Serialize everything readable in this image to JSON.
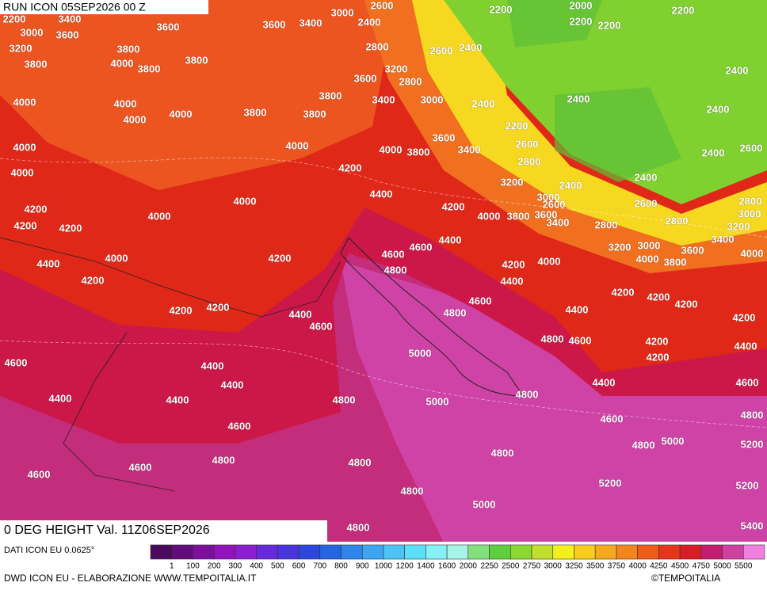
{
  "header": {
    "title": "RUN ICON 05SEP2026 00 Z"
  },
  "footer": {
    "field": "0 DEG HEIGHT Val. 11Z06SEP2026",
    "source": "DATI ICON EU 0.0625°",
    "credit": "DWD ICON EU - ELABORAZIONE WWW.TEMPOITALIA.IT",
    "brand": "©TEMPOITALIA"
  },
  "map_labels": [
    2200,
    3400,
    3000,
    3600,
    3200,
    3800,
    3600,
    3600,
    3400,
    3000,
    2400,
    2600,
    2200,
    2000,
    2200,
    2200,
    2200,
    3800,
    4000,
    3800,
    3800,
    2800,
    2600,
    2400,
    3200,
    2800,
    3600,
    3400,
    3000,
    2400,
    3800,
    4000,
    4000,
    4000,
    4000,
    3800,
    3800,
    2400,
    2400,
    2400,
    2200,
    4000,
    4000,
    4000,
    4000,
    3800,
    3600,
    3400,
    2600,
    2800,
    2400,
    2600,
    4200,
    3200,
    3000,
    2400,
    2400,
    4200,
    4200,
    4200,
    4000,
    4000,
    4400,
    4200,
    4000,
    3800,
    3600,
    2600,
    2600,
    2800,
    2800,
    3000,
    3200,
    3400,
    2800,
    3400,
    3200,
    3000,
    4000,
    3800,
    3600,
    4000,
    4400,
    4600,
    4600,
    4800,
    4200,
    4000,
    4000,
    4200,
    4400,
    4200,
    4400,
    4200,
    4200,
    4200,
    4600,
    4200,
    4200,
    4400,
    4600,
    4800,
    4400,
    4200,
    4800,
    4600,
    4200,
    4400,
    4200,
    4600,
    5000,
    4400,
    4400,
    4400,
    4600,
    4400,
    4400,
    4800,
    5000,
    4800,
    4800,
    4600,
    4600,
    5000,
    4800,
    5200,
    4800,
    4600,
    4800,
    4800,
    4600,
    5200,
    5200,
    4800,
    5000,
    4800,
    5400
  ],
  "colorbar": {
    "labels": [
      1,
      100,
      200,
      300,
      400,
      500,
      600,
      700,
      800,
      900,
      1000,
      1200,
      1400,
      1600,
      2000,
      2250,
      2500,
      2750,
      3000,
      3250,
      3500,
      3750,
      4000,
      4250,
      4500,
      4750,
      5000,
      5500
    ],
    "colors": [
      "#4b0a5e",
      "#640c7c",
      "#7c109c",
      "#9412bc",
      "#8a1ed0",
      "#6a28dc",
      "#4a34dc",
      "#2c48dc",
      "#2466e2",
      "#2e86ea",
      "#3ea6f0",
      "#4cc4f6",
      "#5ce0f8",
      "#86f0f6",
      "#a6f4e8",
      "#84e07c",
      "#5cd03c",
      "#8cd830",
      "#c0e02c",
      "#f4f01c",
      "#f8cc1c",
      "#f8a81c",
      "#f4841c",
      "#ee5c1a",
      "#e6361a",
      "#da1c26",
      "#c41c70",
      "#d040a0",
      "#f080e0"
    ]
  }
}
